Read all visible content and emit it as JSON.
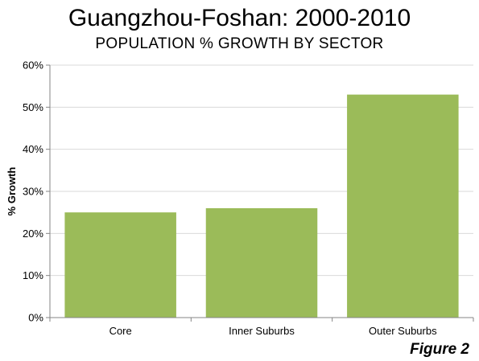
{
  "title": "Guangzhou-Foshan: 2000-2010",
  "subtitle": "POPULATION % GROWTH BY SECTOR",
  "figure_label": "Figure 2",
  "colors": {
    "bar": "#9BBB59",
    "axis": "#868686",
    "grid": "#D9D9D9"
  },
  "chart_data": {
    "type": "bar",
    "categories": [
      "Core",
      "Inner Suburbs",
      "Outer Suburbs"
    ],
    "values": [
      25,
      26,
      53
    ],
    "ylabel": "% Growth",
    "xlabel": "",
    "ylim": [
      0,
      60
    ],
    "yticks": [
      0,
      10,
      20,
      30,
      40,
      50,
      60
    ],
    "ytick_labels": [
      "0%",
      "10%",
      "20%",
      "30%",
      "40%",
      "50%",
      "60%"
    ],
    "grid": "horizontal"
  }
}
